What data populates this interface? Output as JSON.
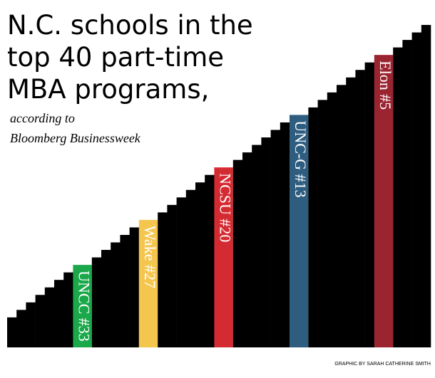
{
  "chart_data": {
    "type": "bar",
    "title": [
      "N.C. schools in the",
      "top 40 part-time",
      "MBA programs,"
    ],
    "subtitle": [
      "according to",
      "Bloomberg Businessweek"
    ],
    "credit": "GRAPHIC BY SARAH CATHERINE SMITH",
    "categories": [
      null,
      null,
      null,
      null,
      null,
      null,
      null,
      "UNCC #33",
      null,
      null,
      null,
      null,
      null,
      "Wake #27",
      null,
      null,
      null,
      null,
      null,
      null,
      "NCSU #20",
      null,
      null,
      null,
      null,
      null,
      null,
      "UNC-G #13",
      null,
      null,
      null,
      null,
      null,
      null,
      null,
      "Elon #5",
      null,
      null,
      null,
      null
    ],
    "values": [
      40,
      39,
      38,
      37,
      36,
      35,
      34,
      33,
      32,
      31,
      30,
      29,
      28,
      27,
      26,
      25,
      24,
      23,
      22,
      21,
      20,
      19,
      18,
      17,
      16,
      15,
      14,
      13,
      12,
      11,
      10,
      9,
      8,
      7,
      6,
      5,
      4,
      3,
      2,
      1
    ],
    "colors": [
      "#000000",
      "#000000",
      "#000000",
      "#000000",
      "#000000",
      "#000000",
      "#000000",
      "#1aa84a",
      "#000000",
      "#000000",
      "#000000",
      "#000000",
      "#000000",
      "#f4c64e",
      "#000000",
      "#000000",
      "#000000",
      "#000000",
      "#000000",
      "#000000",
      "#d42a31",
      "#000000",
      "#000000",
      "#000000",
      "#000000",
      "#000000",
      "#000000",
      "#2f5d80",
      "#000000",
      "#000000",
      "#000000",
      "#000000",
      "#000000",
      "#000000",
      "#000000",
      "#9b2431",
      "#000000",
      "#000000",
      "#000000",
      "#000000"
    ],
    "ylim": [
      44,
      0
    ]
  }
}
